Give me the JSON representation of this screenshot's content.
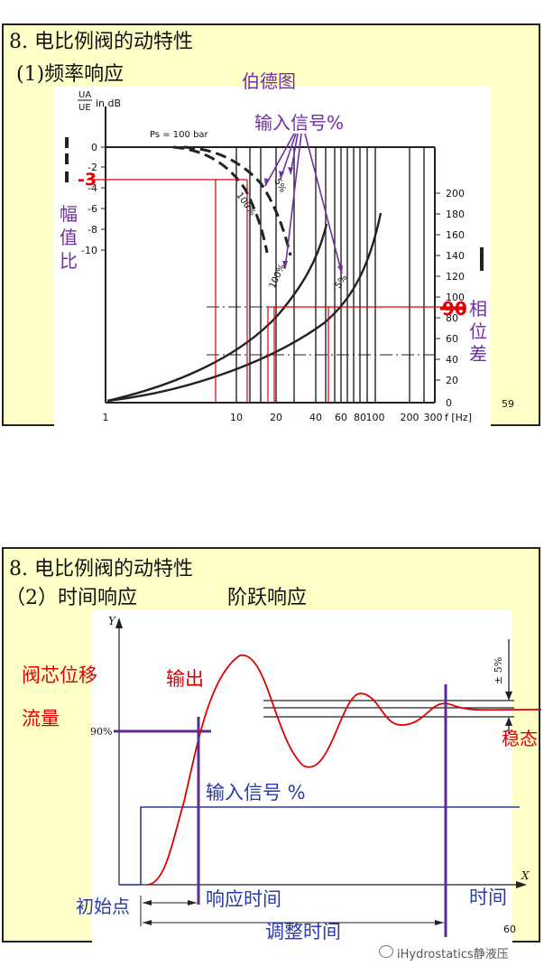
{
  "slide1": {
    "title": "8. 电比例阀的动特性",
    "subtitle": "(1)频率响应",
    "diagram_title": "伯德图",
    "input_signal_label": "输入信号%",
    "minus3_label": "-3",
    "amplitude_label": "幅值比",
    "phase_label": "相位差",
    "ninety_label": "90",
    "page_number": "59",
    "figure_texts": {
      "y_axis_label": "UA/UE in dB",
      "ps_label": "Ps = 100 bar",
      "curve_label_5": "5%",
      "curve_label_100": "100%",
      "x_axis_unit": "f [Hz]"
    },
    "left_ticks": [
      "0",
      "-2",
      "-4",
      "-6",
      "-8",
      "-10"
    ],
    "right_ticks": [
      "200",
      "180",
      "160",
      "140",
      "120",
      "100",
      "80",
      "60",
      "40",
      "20",
      "0"
    ],
    "x_ticks": [
      "1",
      "10",
      "20",
      "40",
      "60",
      "80",
      "100",
      "200",
      "300"
    ],
    "colors": {
      "red": "#e00000",
      "purple": "#7030a0",
      "curve": "#222222"
    }
  },
  "slide2": {
    "title": "8. 电比例阀的动特性",
    "subtitle": "（2）时间响应",
    "subtitle2": "阶跃响应",
    "valve_label": "阀芯位移",
    "flow_label": "流量",
    "output_label": "输出",
    "steady_label": "稳态",
    "input_signal_label": "输入信号 %",
    "initial_point_label": "初始点",
    "response_time_label": "响应时间",
    "time_label": "时间",
    "settling_time_label": "调整时间",
    "page_number": "60",
    "figure_texts": {
      "y_axis": "Y",
      "x_axis": "X",
      "ninety_percent": "90%",
      "plus_minus_5": "± 5%"
    },
    "colors": {
      "red": "#e00000",
      "blue": "#2a3aa8",
      "purple": "#5a2d91"
    }
  },
  "watermark": "iHydrostatics静液压"
}
